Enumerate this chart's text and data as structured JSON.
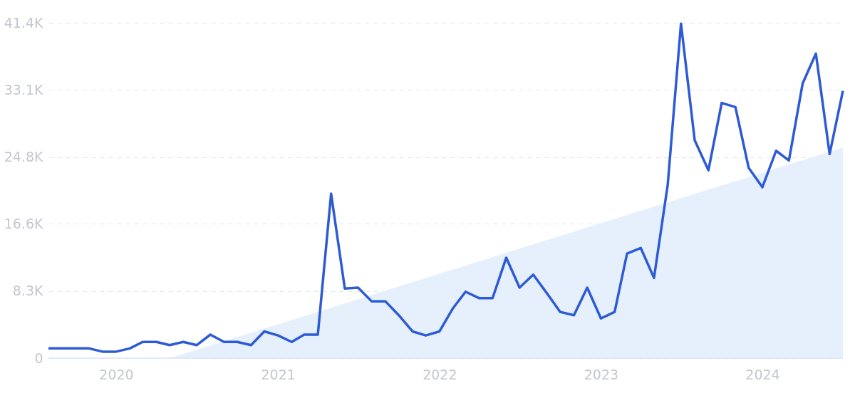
{
  "chart_data": {
    "type": "line",
    "x": [
      "2019-08",
      "2019-09",
      "2019-10",
      "2019-11",
      "2019-12",
      "2020-01",
      "2020-02",
      "2020-03",
      "2020-04",
      "2020-05",
      "2020-06",
      "2020-07",
      "2020-08",
      "2020-09",
      "2020-10",
      "2020-11",
      "2020-12",
      "2021-01",
      "2021-02",
      "2021-03",
      "2021-04",
      "2021-05",
      "2021-06",
      "2021-07",
      "2021-08",
      "2021-09",
      "2021-10",
      "2021-11",
      "2021-12",
      "2022-01",
      "2022-02",
      "2022-03",
      "2022-04",
      "2022-05",
      "2022-06",
      "2022-07",
      "2022-08",
      "2022-09",
      "2022-10",
      "2022-11",
      "2022-12",
      "2023-01",
      "2023-02",
      "2023-03",
      "2023-04",
      "2023-05",
      "2023-06",
      "2023-07",
      "2023-08",
      "2023-09",
      "2023-10",
      "2023-11",
      "2023-12",
      "2024-01",
      "2024-02",
      "2024-03",
      "2024-04",
      "2024-05",
      "2024-06",
      "2024-07"
    ],
    "series": [
      {
        "type": "area",
        "color": "#e6f0fc",
        "x": [
          "2020-05",
          "2024-07"
        ],
        "values": [
          0,
          26000
        ]
      },
      {
        "color": "#2d5bd6",
        "values": [
          1200,
          1200,
          1200,
          1200,
          800,
          800,
          1200,
          2000,
          2000,
          1600,
          2000,
          1600,
          2900,
          2000,
          2000,
          1600,
          3300,
          2800,
          2000,
          2900,
          2900,
          20300,
          8600,
          8700,
          7000,
          7000,
          5300,
          3300,
          2800,
          3300,
          6200,
          8200,
          7400,
          7400,
          12400,
          8700,
          10300,
          8000,
          5700,
          5300,
          8700,
          4900,
          5700,
          12900,
          13600,
          9900,
          21400,
          41300,
          26900,
          23200,
          31500,
          31000,
          23500,
          21100,
          25600,
          24400,
          33900,
          37600,
          25200,
          33000
        ]
      }
    ],
    "xlim": [
      "2019-08",
      "2024-07"
    ],
    "xticks": [
      "2020",
      "2021",
      "2022",
      "2023",
      "2024"
    ],
    "ylim": [
      0,
      41400
    ],
    "yticks": [
      0,
      {
        "value": 8300,
        "label": "8.3K"
      },
      {
        "value": 16600,
        "label": "16.6K"
      },
      {
        "value": 24800,
        "label": "24.8K"
      },
      {
        "value": 33100,
        "label": "33.1K"
      },
      {
        "value": 41400,
        "label": "41.4K"
      }
    ],
    "grid": "y",
    "line_style": "solid",
    "marker": "none"
  }
}
